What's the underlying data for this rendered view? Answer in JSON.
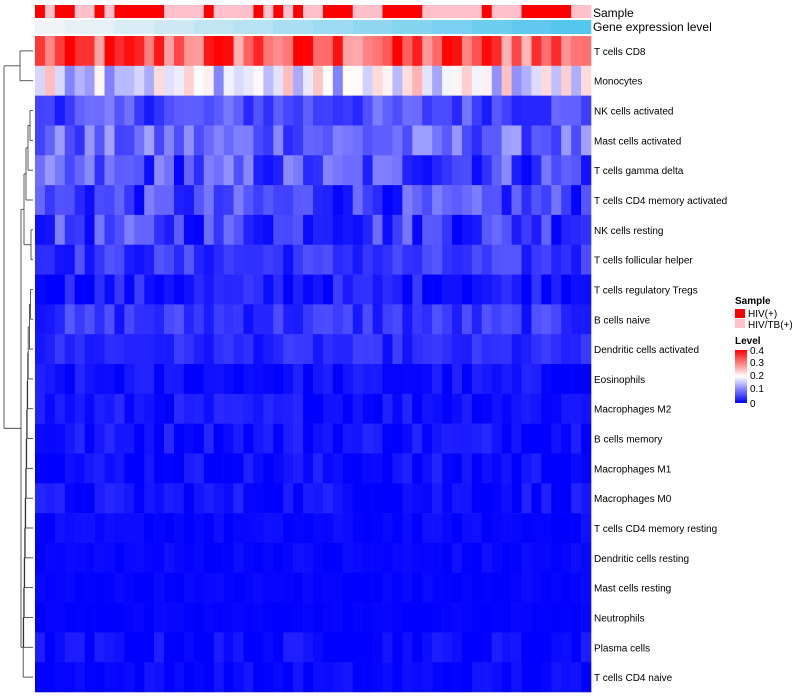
{
  "chart_data": {
    "type": "heatmap",
    "annotation_labels": [
      "Sample",
      "Gene expression level"
    ],
    "sample_ids": [
      "HIV(+)",
      "HIV/TB(+)"
    ],
    "sample_annotation": [
      0,
      1,
      0,
      0,
      1,
      1,
      0,
      1,
      0,
      0,
      0,
      0,
      0,
      1,
      1,
      1,
      1,
      0,
      1,
      1,
      1,
      1,
      0,
      1,
      0,
      1,
      0,
      1,
      1,
      0,
      0,
      0,
      1,
      1,
      1,
      0,
      0,
      0,
      0,
      1,
      1,
      1,
      1,
      1,
      1,
      0,
      1,
      1,
      1,
      0,
      0,
      0,
      0,
      0,
      1,
      1
    ],
    "expression_level": [
      0.18,
      0.18,
      0.18,
      0.19,
      0.19,
      0.19,
      0.19,
      0.19,
      0.2,
      0.2,
      0.2,
      0.2,
      0.21,
      0.21,
      0.21,
      0.21,
      0.22,
      0.22,
      0.22,
      0.22,
      0.23,
      0.23,
      0.23,
      0.23,
      0.24,
      0.24,
      0.24,
      0.24,
      0.25,
      0.25,
      0.25,
      0.25,
      0.26,
      0.26,
      0.26,
      0.26,
      0.27,
      0.27,
      0.27,
      0.27,
      0.28,
      0.28,
      0.28,
      0.28,
      0.29,
      0.29,
      0.29,
      0.29,
      0.3,
      0.3,
      0.3,
      0.3,
      0.31,
      0.31,
      0.31,
      0.31
    ],
    "expression_colors": {
      "low": "#f2f3f6",
      "high": "#55c6ee"
    },
    "rows": [
      "T cells CD8",
      "Monocytes",
      "NK cells activated",
      "Mast cells activated",
      "T cells gamma delta",
      "T cells CD4 memory activated",
      "NK cells resting",
      "T cells follicular helper",
      "T cells regulatory  Tregs",
      "B cells naive",
      "Dendritic cells activated",
      "Eosinophils",
      "Macrophages M2",
      "B cells memory",
      "Macrophages M1",
      "Macrophages M0",
      "T cells CD4 memory resting",
      "Dendritic cells resting",
      "Mast cells resting",
      "Neutrophils",
      "Plasma cells",
      "T cells CD4 naive"
    ],
    "n_columns": 56,
    "row_means": [
      0.33,
      0.18,
      0.06,
      0.08,
      0.06,
      0.05,
      0.05,
      0.04,
      0.02,
      0.04,
      0.03,
      0.01,
      0.015,
      0.015,
      0.01,
      0.012,
      0.004,
      0.004,
      0.003,
      0.002,
      0.006,
      0.004
    ],
    "row_spread": [
      0.09,
      0.08,
      0.04,
      0.05,
      0.06,
      0.05,
      0.05,
      0.03,
      0.03,
      0.03,
      0.02,
      0.02,
      0.02,
      0.02,
      0.02,
      0.02,
      0.01,
      0.01,
      0.006,
      0.005,
      0.02,
      0.015
    ],
    "color_scale": {
      "min": 0,
      "max": 0.4,
      "colors": [
        "#0000ff",
        "#ffffff",
        "#ff0000"
      ],
      "mid": 0.2
    },
    "sample_colors": {
      "HIV(+)": "#ff0000",
      "HIV/TB(+)": "#ffc0cb"
    }
  },
  "legend": {
    "sample_title": "Sample",
    "sample_entries": [
      "HIV(+)",
      "HIV/TB(+)"
    ],
    "level_title": "Level",
    "level_ticks": [
      "0.4",
      "0.3",
      "0.2",
      "0.1",
      "0"
    ]
  }
}
